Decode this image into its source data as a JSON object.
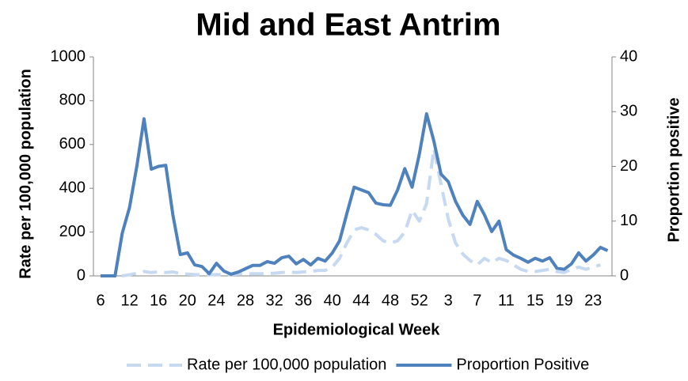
{
  "chart_data": {
    "type": "line",
    "title": "Mid and East Antrim",
    "x_label": "Epidemiological Week",
    "y_label": "Rate per 100,000 population",
    "y2_label": "Proportion positive",
    "categories": [
      "6",
      null,
      null,
      null,
      "12",
      null,
      null,
      null,
      "16",
      null,
      null,
      null,
      "20",
      null,
      null,
      null,
      "24",
      null,
      null,
      null,
      "28",
      null,
      null,
      null,
      "32",
      null,
      null,
      null,
      "36",
      null,
      null,
      null,
      "40",
      null,
      null,
      null,
      "44",
      null,
      null,
      null,
      "48",
      null,
      null,
      null,
      "52",
      null,
      null,
      null,
      "3",
      null,
      null,
      null,
      "7",
      null,
      null,
      null,
      "11",
      null,
      null,
      null,
      "15",
      null,
      null,
      null,
      "19",
      null,
      null,
      null,
      "23",
      null,
      null
    ],
    "ylim": [
      0,
      1000
    ],
    "yticks": [
      0,
      200,
      400,
      600,
      800,
      1000
    ],
    "y2lim": [
      0,
      40
    ],
    "y2ticks": [
      0,
      10,
      20,
      30,
      40
    ],
    "series": [
      {
        "name": "Rate per 100,000 population",
        "color": "#c6d9f1",
        "dashed": true,
        "values": [
          0,
          0,
          0,
          0,
          5,
          12,
          20,
          15,
          18,
          15,
          18,
          10,
          8,
          6,
          5,
          4,
          6,
          5,
          6,
          8,
          8,
          10,
          10,
          12,
          12,
          15,
          18,
          15,
          18,
          20,
          25,
          25,
          40,
          80,
          150,
          210,
          220,
          210,
          190,
          160,
          150,
          160,
          200,
          300,
          250,
          330,
          580,
          420,
          260,
          150,
          100,
          70,
          50,
          80,
          60,
          80,
          70,
          50,
          30,
          20,
          20,
          25,
          30,
          20,
          15,
          30,
          40,
          30,
          40,
          50,
          null
        ]
      },
      {
        "name": "Proportion Positive",
        "color": "#4f81bd",
        "axis": "y2",
        "values": [
          0,
          0,
          0,
          7.8,
          12.5,
          20,
          28.7,
          19.5,
          20,
          20.2,
          11,
          3.9,
          4.2,
          2,
          1.7,
          0.4,
          2.3,
          0.9,
          0.3,
          0.7,
          1.3,
          1.9,
          1.9,
          2.6,
          2.3,
          3.3,
          3.6,
          2.2,
          3,
          2,
          3.2,
          2.7,
          4.2,
          6.4,
          11.4,
          16.2,
          15.7,
          15.2,
          13.3,
          13,
          12.9,
          15.7,
          19.6,
          16.2,
          22.2,
          29.6,
          24.7,
          18.6,
          17.2,
          13.6,
          11.1,
          9.4,
          13.6,
          11.1,
          8.1,
          10,
          4.8,
          3.8,
          3.2,
          2.5,
          3.2,
          2.7,
          3.3,
          1.4,
          1.2,
          2.2,
          4.2,
          2.7,
          3.8,
          5.2,
          4.6
        ]
      }
    ]
  }
}
